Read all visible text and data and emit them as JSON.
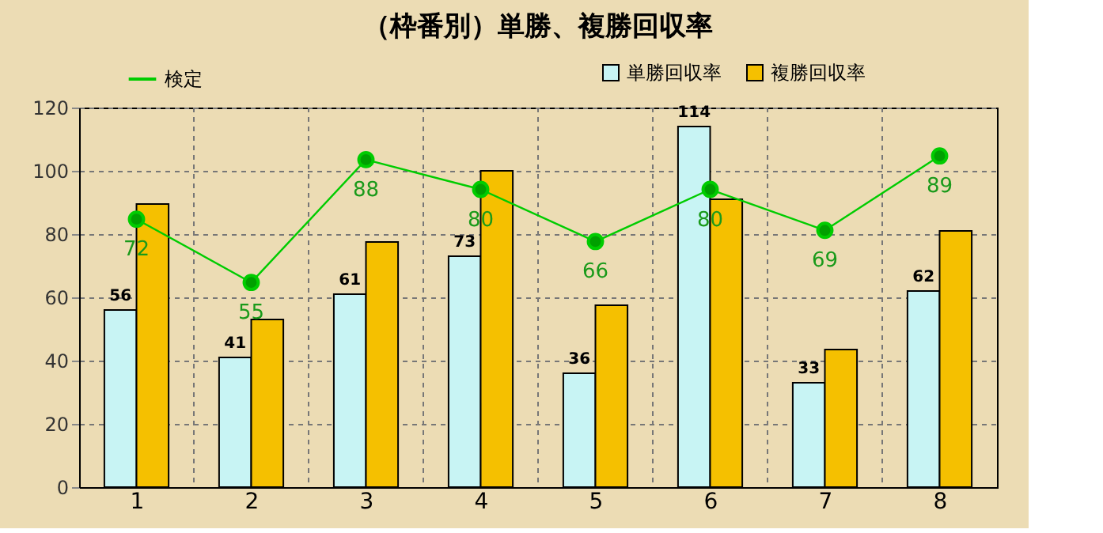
{
  "chart_data": {
    "type": "bar",
    "title": "（枠番別）単勝、複勝回収率",
    "categories": [
      "1",
      "2",
      "3",
      "4",
      "5",
      "6",
      "7",
      "8"
    ],
    "series": [
      {
        "name": "単勝回収率",
        "color": "#c8f4f4",
        "values": [
          56,
          41,
          61,
          73,
          36,
          114,
          33,
          62
        ],
        "value_labels": [
          "56",
          "41",
          "61",
          "73",
          "36",
          "114",
          "33",
          "62"
        ]
      },
      {
        "name": "複勝回収率",
        "color": "#f5c000",
        "values": [
          89.5,
          53,
          77.5,
          100,
          57.5,
          91,
          43.5,
          81
        ]
      },
      {
        "name": "検定",
        "type": "line",
        "axis": "y2",
        "color": "#00cc00",
        "marker": "circle",
        "values": [
          72,
          55,
          88,
          80,
          66,
          80,
          69,
          89
        ],
        "value_labels": [
          "72",
          "55",
          "88",
          "80",
          "66",
          "80",
          "69",
          "89"
        ]
      }
    ],
    "ylim": [
      0,
      120
    ],
    "yticks": [
      0,
      20,
      40,
      60,
      80,
      100,
      120
    ],
    "y2lim": [
      0,
      102
    ],
    "grid": true,
    "legend": "top",
    "tick_labels": "xy"
  }
}
